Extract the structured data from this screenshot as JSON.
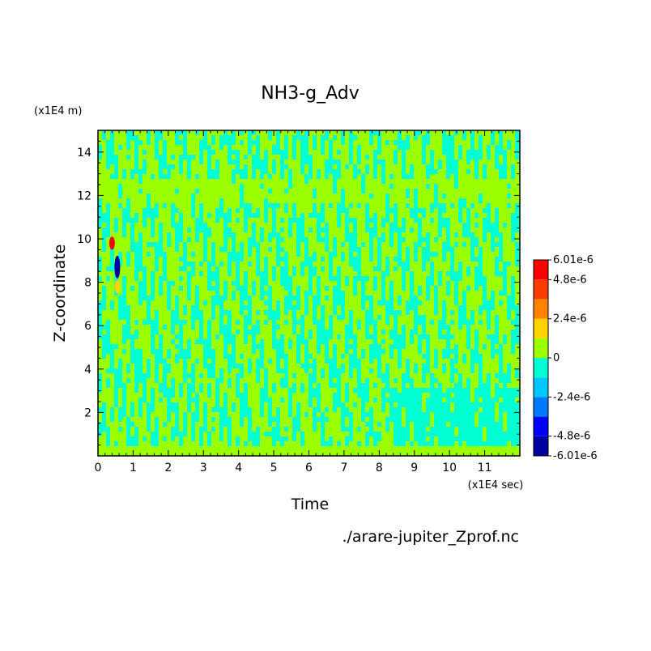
{
  "chart_data": {
    "type": "heatmap",
    "title": "NH3-g_Adv",
    "xlabel": "Time",
    "ylabel": "Z-coordinate",
    "x_unit": "(x1E4 sec)",
    "y_unit": "(x1E4 m)",
    "xlim": [
      0,
      12
    ],
    "ylim": [
      0,
      15
    ],
    "x_ticks": [
      0,
      1,
      2,
      3,
      4,
      5,
      6,
      7,
      8,
      9,
      10,
      11
    ],
    "y_ticks": [
      2,
      4,
      6,
      8,
      10,
      12,
      14
    ],
    "colorbar": {
      "range": [
        -6.01e-06,
        6.01e-06
      ],
      "labels": [
        "6.01e-6",
        "4.8e-6",
        "2.4e-6",
        "0",
        "-2.4e-6",
        "-4.8e-6",
        "-6.01e-6"
      ],
      "colors": [
        "#0000a0",
        "#0000ff",
        "#0078ff",
        "#00c8ff",
        "#00ffd2",
        "#9bff00",
        "#ffd200",
        "#ff8200",
        "#ff3c00",
        "#ff0000"
      ]
    },
    "dominant_levels": {
      "negative_small": "#00ffd2",
      "positive_small": "#9bff00"
    },
    "features": [
      {
        "x": 0.4,
        "y": 9.8,
        "level": "positive_max"
      },
      {
        "x": 0.55,
        "y": 8.7,
        "level": "negative_max"
      },
      {
        "x": 0.55,
        "y": 7.8,
        "level": "positive_mid"
      }
    ]
  },
  "footer": {
    "source": "./arare-jupiter_Zprof.nc"
  }
}
